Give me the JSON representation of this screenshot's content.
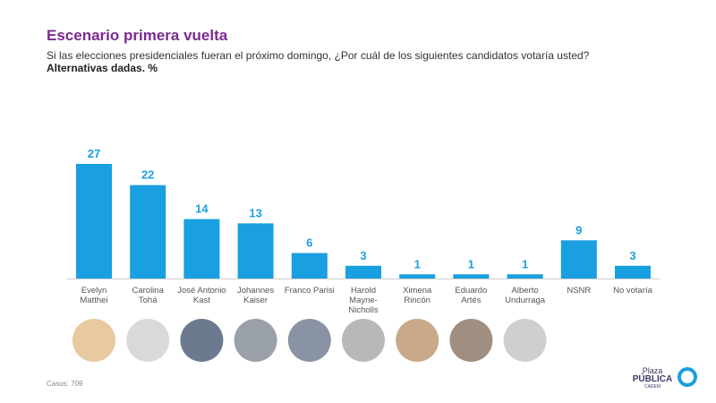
{
  "chart_data": {
    "type": "bar",
    "title": "Escenario primera vuelta",
    "subtitle": "Si las elecciones presidenciales fueran el próximo domingo, ¿Por cuál de los siguientes candidatos votaría usted?",
    "subtitle2": "Alternativas dadas. %",
    "categories": [
      "Evelyn Matthei",
      "Carolina Tohá",
      "José Antonio Kast",
      "Johannes Kaiser",
      "Franco Parisi",
      "Harold Mayne-Nicholls",
      "Ximena Rincón",
      "Eduardo Artés",
      "Alberto Undurraga",
      "NSNR",
      "No votaría"
    ],
    "values": [
      27,
      22,
      14,
      13,
      6,
      3,
      1,
      1,
      1,
      9,
      3
    ],
    "color": "#1a9fe0",
    "footnote": "Casos: 709",
    "logo": [
      "Plaza",
      "PÚBLICA",
      "CADEM"
    ]
  }
}
